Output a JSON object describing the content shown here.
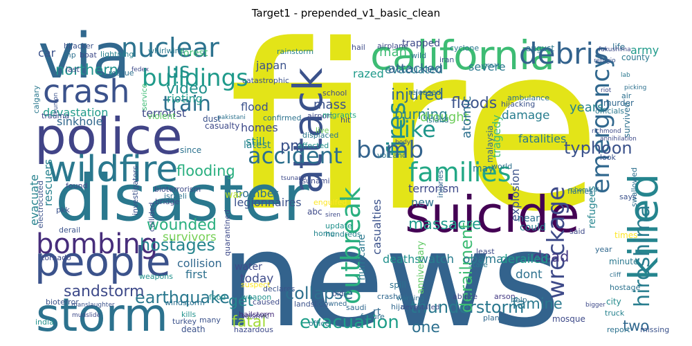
{
  "title": "Target1 - prepended_v1_basic_clean",
  "words": [
    {
      "text": "fire",
      "color": "#e3e418"
    },
    {
      "text": "news",
      "color": "#33638d"
    },
    {
      "text": "disaster",
      "color": "#2a788e"
    },
    {
      "text": "police",
      "color": "#414487"
    },
    {
      "text": "via",
      "color": "#31688e"
    },
    {
      "text": "california",
      "color": "#3dbc74"
    },
    {
      "text": "suicide",
      "color": "#440154"
    },
    {
      "text": "attack",
      "color": "#3b528b"
    },
    {
      "text": "storm",
      "color": "#2c728e"
    },
    {
      "text": "people",
      "color": "#3b528b"
    },
    {
      "text": "wildfire",
      "color": "#2a788e"
    },
    {
      "text": "killed",
      "color": "#25858e"
    },
    {
      "text": "crash",
      "color": "#3b528b"
    },
    {
      "text": "bombing",
      "color": "#472d7b"
    },
    {
      "text": "nuclear",
      "color": "#2c728e"
    },
    {
      "text": "debris",
      "color": "#33638d"
    },
    {
      "text": "families",
      "color": "#22a785"
    },
    {
      "text": "outbreak",
      "color": "#29af7f"
    },
    {
      "text": "emergency",
      "color": "#31688e"
    },
    {
      "text": "hiroshima",
      "color": "#287d8e"
    },
    {
      "text": "wreckage",
      "color": "#3e4a89"
    },
    {
      "text": "accident",
      "color": "#2d708e"
    },
    {
      "text": "buildings",
      "color": "#1f9a8a"
    },
    {
      "text": "train",
      "color": "#2d708e"
    },
    {
      "text": "us",
      "color": "#21918c"
    },
    {
      "text": "fires",
      "color": "#238a8d"
    },
    {
      "text": "like",
      "color": "#1f968b"
    },
    {
      "text": "bomb",
      "color": "#33638d"
    },
    {
      "text": "typhoon",
      "color": "#3b528b"
    },
    {
      "text": "earthquake",
      "color": "#2a788e"
    },
    {
      "text": "sandstorm",
      "color": "#3e4a89"
    },
    {
      "text": "hostages",
      "color": "#25858e"
    },
    {
      "text": "collapse",
      "color": "#2d708e"
    },
    {
      "text": "evacuation",
      "color": "#1f9e89"
    },
    {
      "text": "thunderstorm",
      "color": "#2a788e"
    },
    {
      "text": "wounded",
      "color": "#29af7f"
    },
    {
      "text": "survivors",
      "color": "#75d054"
    },
    {
      "text": "northern",
      "color": "#21918c"
    },
    {
      "text": "video",
      "color": "#21918c"
    },
    {
      "text": "derailment",
      "color": "#3dbc74"
    },
    {
      "text": "dead",
      "color": "#443983"
    },
    {
      "text": "famine",
      "color": "#2a788e"
    },
    {
      "text": "two",
      "color": "#31688e"
    },
    {
      "text": "one",
      "color": "#2d708e"
    },
    {
      "text": "get",
      "color": "#25858e"
    },
    {
      "text": "fatal",
      "color": "#a2da37"
    },
    {
      "text": "injured",
      "color": "#31688e"
    },
    {
      "text": "burning",
      "color": "#26828e"
    },
    {
      "text": "evacuated",
      "color": "#26828e"
    },
    {
      "text": "flooding",
      "color": "#29af7f"
    },
    {
      "text": "legionnaires",
      "color": "#3b528b"
    },
    {
      "text": "devastation",
      "color": "#1f9a8a"
    },
    {
      "text": "terrorist",
      "color": "#3e4a89"
    },
    {
      "text": "sinkhole",
      "color": "#31688e"
    },
    {
      "text": "massacre",
      "color": "#1f9a8a"
    },
    {
      "text": "floods",
      "color": "#3b528b"
    },
    {
      "text": "army",
      "color": "#1f9a8a"
    },
    {
      "text": "car",
      "color": "#3b528b"
    },
    {
      "text": "homes",
      "color": "#3e4a89"
    },
    {
      "text": "flood",
      "color": "#3b528b"
    },
    {
      "text": "still",
      "color": "#238a8d"
    },
    {
      "text": "pm",
      "color": "#3b528b"
    },
    {
      "text": "drought",
      "color": "#6ccd5a"
    },
    {
      "text": "razed",
      "color": "#1f9a8a"
    },
    {
      "text": "attacked",
      "color": "#33638d"
    },
    {
      "text": "japan",
      "color": "#3b528b"
    },
    {
      "text": "atomic",
      "color": "#2d708e"
    },
    {
      "text": "severe",
      "color": "#2a788e"
    },
    {
      "text": "rioting",
      "color": "#1f9a8a"
    },
    {
      "text": "years",
      "color": "#26828e"
    },
    {
      "text": "damage",
      "color": "#287d8e"
    },
    {
      "text": "fatalities",
      "color": "#2a788e"
    },
    {
      "text": "explosion",
      "color": "#3b528b"
    },
    {
      "text": "tragedy",
      "color": "#3dbc74"
    },
    {
      "text": "bomber",
      "color": "#2d708e"
    },
    {
      "text": "terrorism",
      "color": "#3e4a89"
    },
    {
      "text": "casualties",
      "color": "#3b528b"
    },
    {
      "text": "rescuers",
      "color": "#26828e"
    },
    {
      "text": "evacuate",
      "color": "#26828e"
    },
    {
      "text": "collision",
      "color": "#31688e"
    },
    {
      "text": "deaths",
      "color": "#21918c"
    },
    {
      "text": "watch",
      "color": "#287d8e"
    },
    {
      "text": "obama",
      "color": "#2a788e"
    },
    {
      "text": "derailed",
      "color": "#1f9a8a"
    },
    {
      "text": "dont",
      "color": "#2d708e"
    },
    {
      "text": "today",
      "color": "#3e4a89"
    },
    {
      "text": "mass",
      "color": "#3b528b"
    },
    {
      "text": "latest",
      "color": "#26828e"
    },
    {
      "text": "war",
      "color": "#b5de2b"
    },
    {
      "text": "new",
      "color": "#2c728e"
    },
    {
      "text": "first",
      "color": "#2d708e"
    },
    {
      "text": "water",
      "color": "#3e4a89"
    },
    {
      "text": "rt",
      "color": "#31688e"
    },
    {
      "text": "forest",
      "color": "#3dbc74"
    },
    {
      "text": "may",
      "color": "#2a788e"
    },
    {
      "text": "could",
      "color": "#287d8e"
    },
    {
      "text": "near",
      "color": "#2c728e"
    },
    {
      "text": "hurricane",
      "color": "#2a788e"
    },
    {
      "text": "malaysia",
      "color": "#31688e"
    },
    {
      "text": "refugees",
      "color": "#25858e"
    },
    {
      "text": "murder",
      "color": "#31688e"
    },
    {
      "text": "survived",
      "color": "#2d708e"
    },
    {
      "text": "minute",
      "color": "#2a788e"
    },
    {
      "text": "times",
      "color": "#fde725"
    },
    {
      "text": "city",
      "color": "#238a8d"
    },
    {
      "text": "says",
      "color": "#3b528b"
    },
    {
      "text": "swallowed",
      "color": "#2d708e"
    },
    {
      "text": "windstorm",
      "color": "#2d708e"
    },
    {
      "text": "bridge",
      "color": "#3e4a89"
    },
    {
      "text": "weapons",
      "color": "#21918c"
    },
    {
      "text": "investigators",
      "color": "#3b528b"
    },
    {
      "text": "bioterror",
      "color": "#3b528b"
    },
    {
      "text": "tornado",
      "color": "#3e4a89"
    },
    {
      "text": "india",
      "color": "#21918c"
    },
    {
      "text": "manslaughter",
      "color": "#3b528b"
    },
    {
      "text": "hazardous",
      "color": "#3e4a89"
    },
    {
      "text": "seismic",
      "color": "#3e4a89"
    },
    {
      "text": "saudi",
      "color": "#31688e"
    },
    {
      "text": "plane",
      "color": "#31688e"
    },
    {
      "text": "death",
      "color": "#3b528b"
    },
    {
      "text": "kills",
      "color": "#21918c"
    },
    {
      "text": "many",
      "color": "#3b528b"
    },
    {
      "text": "hailstorm",
      "color": "#472d7b"
    },
    {
      "text": "caused",
      "color": "#3e4a89"
    },
    {
      "text": "landslide",
      "color": "#3b528b"
    },
    {
      "text": "crashed",
      "color": "#31688e"
    },
    {
      "text": "ablaze",
      "color": "#3e4a89"
    },
    {
      "text": "arson",
      "color": "#443983"
    },
    {
      "text": "help",
      "color": "#2d708e"
    },
    {
      "text": "truck",
      "color": "#26828e"
    },
    {
      "text": "hostage",
      "color": "#2c728e"
    },
    {
      "text": "report",
      "color": "#2c728e"
    },
    {
      "text": "missing",
      "color": "#3b528b"
    },
    {
      "text": "failure",
      "color": "#2d708e"
    },
    {
      "text": "hijack",
      "color": "#31688e"
    },
    {
      "text": "quarantined",
      "color": "#3e4a89"
    },
    {
      "text": "hundreds",
      "color": "#26828e"
    },
    {
      "text": "update",
      "color": "#21918c"
    },
    {
      "text": "home",
      "color": "#25858e"
    },
    {
      "text": "abc",
      "color": "#3e4a89"
    },
    {
      "text": "israeli",
      "color": "#2c728e"
    },
    {
      "text": "found",
      "color": "#3e4a89"
    },
    {
      "text": "suspect",
      "color": "#fde725"
    },
    {
      "text": "spill",
      "color": "#2d708e"
    },
    {
      "text": "warning",
      "color": "#2d708e"
    },
    {
      "text": "declares",
      "color": "#3b528b"
    },
    {
      "text": "weapon",
      "color": "#21918c"
    },
    {
      "text": "drowned",
      "color": "#31688e"
    },
    {
      "text": "devastated",
      "color": "#3e4a89"
    },
    {
      "text": "anniversary",
      "color": "#5ec962"
    },
    {
      "text": "least",
      "color": "#3e4a89"
    },
    {
      "text": "mosque",
      "color": "#3e4a89"
    },
    {
      "text": "world",
      "color": "#2d708e"
    },
    {
      "text": "look",
      "color": "#3b528b"
    },
    {
      "text": "flames",
      "color": "#2c728e"
    },
    {
      "text": "injuries",
      "color": "#31688e"
    },
    {
      "text": "volcano",
      "color": "#2a788e"
    },
    {
      "text": "tsunami",
      "color": "#3e4a89"
    },
    {
      "text": "affected",
      "color": "#21918c"
    },
    {
      "text": "displaced",
      "color": "#2a788e"
    },
    {
      "text": "confirmed",
      "color": "#2c728e"
    },
    {
      "text": "live",
      "color": "#6ccd5a"
    },
    {
      "text": "airport",
      "color": "#3e4a89"
    },
    {
      "text": "migrants",
      "color": "#22a785"
    },
    {
      "text": "school",
      "color": "#3e4a89"
    },
    {
      "text": "island",
      "color": "#2a788e"
    },
    {
      "text": "rainstorm",
      "color": "#26828e"
    },
    {
      "text": "catastrophic",
      "color": "#3b528b"
    },
    {
      "text": "released",
      "color": "#2d708e"
    },
    {
      "text": "ambulance",
      "color": "#2d708e"
    },
    {
      "text": "hijacking",
      "color": "#3b528b"
    },
    {
      "text": "wild",
      "color": "#2c728e"
    },
    {
      "text": "iran",
      "color": "#3b528b"
    },
    {
      "text": "airplane",
      "color": "#3e4a89"
    },
    {
      "text": "cyclone",
      "color": "#2a788e"
    },
    {
      "text": "trapped",
      "color": "#3e4a89"
    },
    {
      "text": "lightning",
      "color": "#26828e"
    },
    {
      "text": "hijacker",
      "color": "#3b528b"
    },
    {
      "text": "boat",
      "color": "#3e4a89"
    },
    {
      "text": "mp",
      "color": "#2d708e"
    },
    {
      "text": "trauma",
      "color": "#3e4a89"
    },
    {
      "text": "rescue",
      "color": "#2d708e"
    },
    {
      "text": "violent",
      "color": "#5ec962"
    },
    {
      "text": "casualty",
      "color": "#3e4a89"
    },
    {
      "text": "since",
      "color": "#2c728e"
    },
    {
      "text": "dust",
      "color": "#3b528b"
    },
    {
      "text": "last",
      "color": "#3e4a89"
    },
    {
      "text": "august",
      "color": "#2a788e"
    },
    {
      "text": "life",
      "color": "#2d708e"
    },
    {
      "text": "county",
      "color": "#2a788e"
    },
    {
      "text": "man",
      "color": "#3dbc74"
    },
    {
      "text": "hail",
      "color": "#3e4a89"
    },
    {
      "text": "officials",
      "color": "#2a788e"
    },
    {
      "text": "air",
      "color": "#2d708e"
    },
    {
      "text": "year",
      "color": "#31688e"
    },
    {
      "text": "said",
      "color": "#3e4a89"
    },
    {
      "text": "state",
      "color": "#2a788e"
    },
    {
      "text": "old",
      "color": "#3b528b"
    },
    {
      "text": "hit",
      "color": "#3e4a89"
    },
    {
      "text": "bioterrorism",
      "color": "#3e4a89"
    },
    {
      "text": "collided",
      "color": "#3e4a89"
    },
    {
      "text": "electrocuted",
      "color": "#3b528b"
    },
    {
      "text": "pkk",
      "color": "#3b528b"
    },
    {
      "text": "derail",
      "color": "#3b528b"
    },
    {
      "text": "fedex",
      "color": "#3e4a89"
    },
    {
      "text": "pakistani",
      "color": "#2c728e"
    },
    {
      "text": "whirlwind",
      "color": "#2a788e"
    },
    {
      "text": "engulfed",
      "color": "#fde725"
    },
    {
      "text": "officer",
      "color": "#2a788e"
    },
    {
      "text": "food",
      "color": "#21918c"
    },
    {
      "text": "turkey",
      "color": "#3b528b"
    },
    {
      "text": "mudslide",
      "color": "#3e4a89"
    },
    {
      "text": "fukushima",
      "color": "#3e4a89"
    },
    {
      "text": "lab",
      "color": "#2a788e"
    },
    {
      "text": "refugio",
      "color": "#3b528b"
    },
    {
      "text": "chemical",
      "color": "#2a788e"
    },
    {
      "text": "richmond",
      "color": "#3e4a89"
    },
    {
      "text": "annihilation",
      "color": "#3e4a89"
    },
    {
      "text": "bigger",
      "color": "#3e4a89"
    },
    {
      "text": "cliff",
      "color": "#2d708e"
    },
    {
      "text": "body",
      "color": "#3e4a89"
    },
    {
      "text": "calgary",
      "color": "#2a788e"
    },
    {
      "text": "reunion",
      "color": "#3b528b"
    },
    {
      "text": "service",
      "color": "#3dbc74"
    },
    {
      "text": "siren",
      "color": "#3e4a89"
    },
    {
      "text": "tsunami",
      "color": "#3e4a89"
    },
    {
      "text": "great",
      "color": "#2a788e"
    },
    {
      "text": "riot",
      "color": "#3e4a89"
    },
    {
      "text": "picking",
      "color": "#2d708e"
    }
  ]
}
